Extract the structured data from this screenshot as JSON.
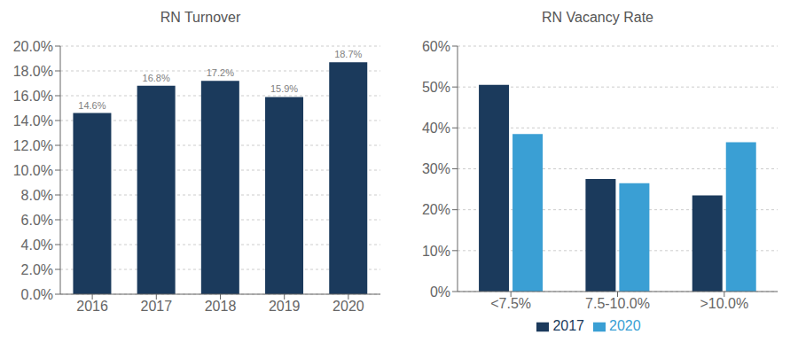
{
  "chart_data": [
    {
      "type": "bar",
      "title": "RN Turnover",
      "categories": [
        "2016",
        "2017",
        "2018",
        "2019",
        "2020"
      ],
      "values": [
        14.6,
        16.8,
        17.2,
        15.9,
        18.7
      ],
      "value_labels": [
        "14.6%",
        "16.8%",
        "17.2%",
        "15.9%",
        "18.7%"
      ],
      "data_labels": true,
      "color": "#1b3a5c",
      "ylim": [
        0,
        20
      ],
      "yticks": [
        {
          "value": 0,
          "label": "0.0%"
        },
        {
          "value": 2,
          "label": "2.0%"
        },
        {
          "value": 4,
          "label": "4.0%"
        },
        {
          "value": 6,
          "label": "6.0%"
        },
        {
          "value": 8,
          "label": "8.0%"
        },
        {
          "value": 10,
          "label": "10.0%"
        },
        {
          "value": 12,
          "label": "12.0%"
        },
        {
          "value": 14,
          "label": "14.0%"
        },
        {
          "value": 16,
          "label": "16.0%"
        },
        {
          "value": 18,
          "label": "18.0%"
        },
        {
          "value": 20,
          "label": "20.0%"
        }
      ],
      "grid": true
    },
    {
      "type": "bar",
      "title": "RN Vacancy Rate",
      "categories": [
        "<7.5%",
        "7.5-10.0%",
        ">10.0%"
      ],
      "series": [
        {
          "name": "2017",
          "color": "#1b3a5c",
          "values": [
            50.5,
            27.5,
            23.5
          ]
        },
        {
          "name": "2020",
          "color": "#3a9fd4",
          "values": [
            38.5,
            26.5,
            36.5
          ]
        }
      ],
      "ylim": [
        0,
        60
      ],
      "yticks": [
        {
          "value": 0,
          "label": "0%"
        },
        {
          "value": 10,
          "label": "10%"
        },
        {
          "value": 20,
          "label": "20%"
        },
        {
          "value": 30,
          "label": "30%"
        },
        {
          "value": 40,
          "label": "40%"
        },
        {
          "value": 50,
          "label": "50%"
        },
        {
          "value": 60,
          "label": "60%"
        }
      ],
      "grid": true,
      "legend": "bottom"
    }
  ]
}
